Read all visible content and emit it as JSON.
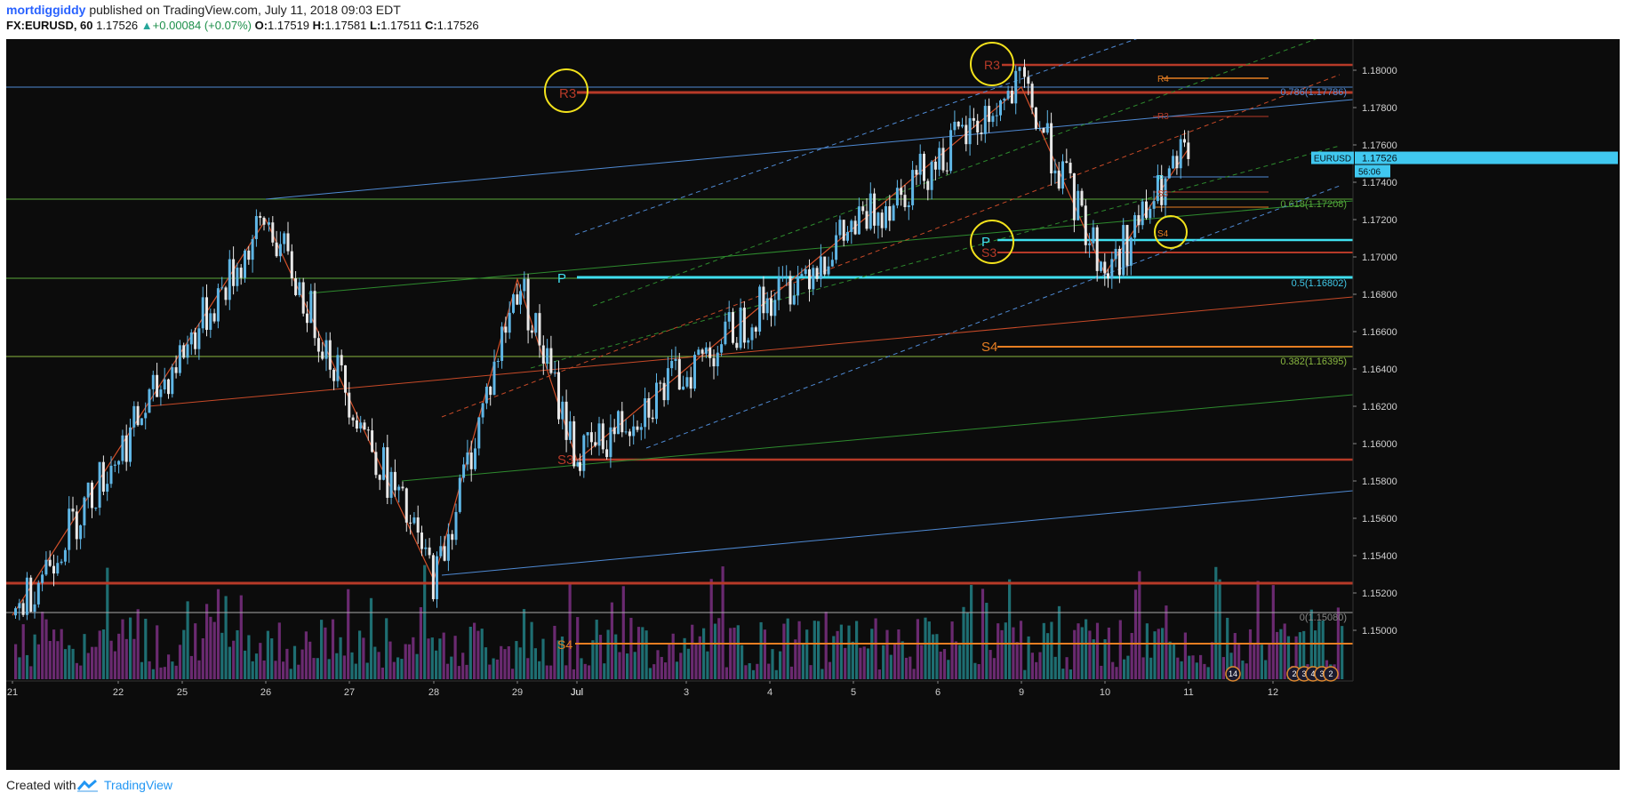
{
  "header": {
    "author": "mortdiggiddy",
    "published_text": "published on TradingView.com, July 11, 2018 09:03 EDT",
    "symbol": "FX:EURUSD, 60",
    "last": "1.17526",
    "change": "+0.00084 (+0.07%)",
    "o_label": "O:",
    "o": "1.17519",
    "h_label": "H:",
    "h": "1.17581",
    "l_label": "L:",
    "l": "1.17511",
    "c_label": "C:",
    "c": "1.17526"
  },
  "footer": {
    "created_with": "Created with",
    "brand": "TradingView"
  },
  "colors": {
    "background": "#0c0c0c",
    "up": "#5fb6e6",
    "down": "#e8e8e8",
    "vol_up": "#1e6e72",
    "vol_down": "#6a2a70",
    "pivot": "#40e0f0",
    "resist": "#b73a28",
    "support4": "#e67e22",
    "fib_blue": "#4f8ad4",
    "fib_green": "#5a9b3a"
  },
  "chart_data": {
    "type": "candlestick",
    "symbol": "EURUSD",
    "timeframe": "60",
    "y_axis": {
      "min": 1.149,
      "max": 1.181,
      "ticks": [
        "1.18000",
        "1.17800",
        "1.17600",
        "1.17400",
        "1.17200",
        "1.17000",
        "1.16800",
        "1.16600",
        "1.16400",
        "1.16200",
        "1.16000",
        "1.15800",
        "1.15600",
        "1.15400",
        "1.15200",
        "1.15000"
      ]
    },
    "x_axis": {
      "labels": [
        "21",
        "22",
        "25",
        "26",
        "27",
        "28",
        "29",
        "Jul",
        "3",
        "4",
        "5",
        "6",
        "9",
        "10",
        "11",
        "12"
      ]
    },
    "price_tag": {
      "label": "EURUSD",
      "value": "1.17526",
      "countdown": "56:06"
    },
    "fib_levels": [
      {
        "label": "0.786(1.17786)",
        "value": 1.17786
      },
      {
        "label": "0.618(1.17208)",
        "value": 1.17208
      },
      {
        "label": "0.5(1.16802)",
        "value": 1.16802
      },
      {
        "label": "0.382(1.16395)",
        "value": 1.16395
      },
      {
        "label": "0(1.15080)",
        "value": 1.1508
      }
    ],
    "pivot_labels": [
      {
        "label": "R3",
        "value": 1.1776
      },
      {
        "label": "R3",
        "value": 1.1791
      },
      {
        "label": "R4",
        "value": 1.1784
      },
      {
        "label": "R3",
        "value": 1.1765
      },
      {
        "label": "P",
        "value": 1.17
      },
      {
        "label": "S3",
        "value": 1.1693
      },
      {
        "label": "P",
        "value": 1.1733
      },
      {
        "label": "S3",
        "value": 1.1724
      },
      {
        "label": "S4",
        "value": 1.1704
      },
      {
        "label": "S4",
        "value": 1.1645
      },
      {
        "label": "S3",
        "value": 1.1587
      },
      {
        "label": "P",
        "value": 1.1681
      },
      {
        "label": "S4",
        "value": 1.1493
      }
    ],
    "zigzag": [
      {
        "date": "Jun 21",
        "value": 1.1508
      },
      {
        "date": "Jun 26",
        "value": 1.172
      },
      {
        "date": "Jun 28",
        "value": 1.1527
      },
      {
        "date": "Jun 29",
        "value": 1.1688
      },
      {
        "date": "Jul 2",
        "value": 1.1591
      },
      {
        "date": "Jul 9",
        "value": 1.1791
      },
      {
        "date": "Jul 10",
        "value": 1.1691
      },
      {
        "date": "Jul 11",
        "value": 1.1758
      }
    ],
    "event_badges": [
      "14",
      "2",
      "3",
      "4",
      "3",
      "2"
    ]
  }
}
